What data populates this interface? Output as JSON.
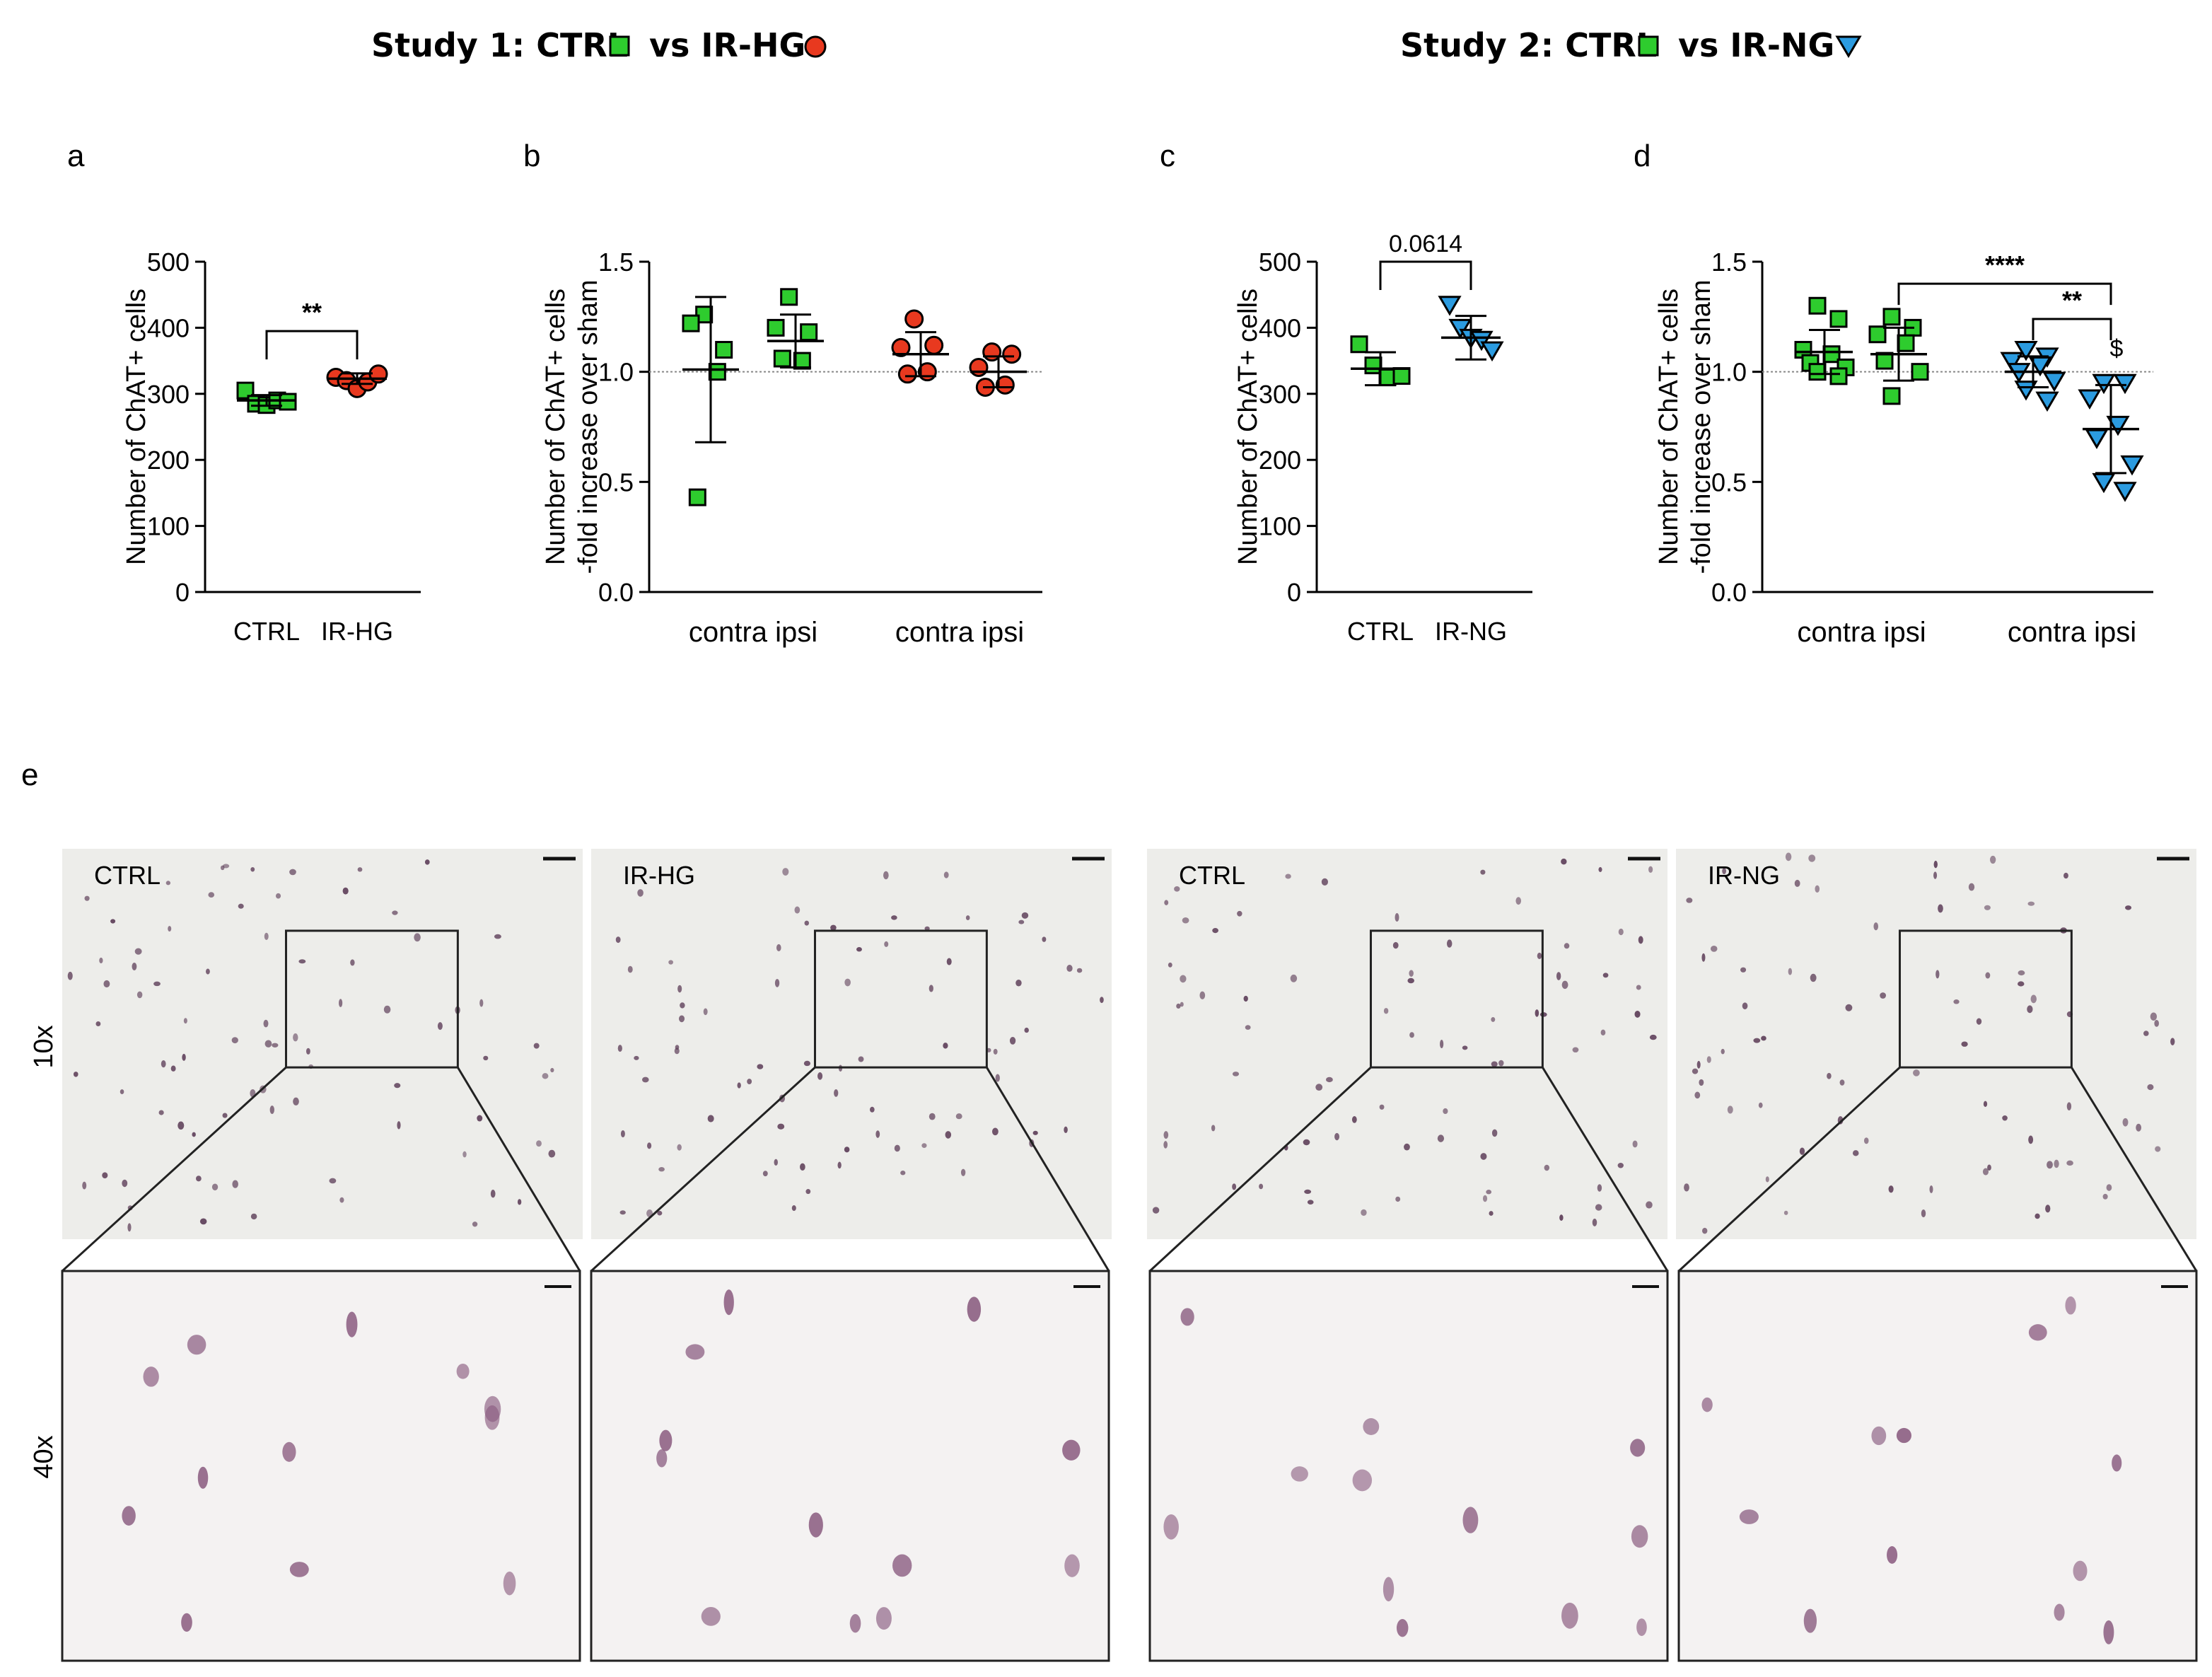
{
  "titles": {
    "study1": "Study 1: CTRL",
    "study1_vs": "vs IR-HG",
    "study2": "Study 2: CTRL",
    "study2_vs": "vs IR-NG"
  },
  "colors": {
    "ctrl": "#2ecc2e",
    "ir_hg": "#e8391f",
    "ir_ng": "#2b9be0",
    "tissue_bg": "#ededea",
    "tissue_bg_40x": "#f4f2f2",
    "cell": "#5a3a55",
    "cell_40x": "#8a5c80"
  },
  "chart_data": [
    {
      "panel": "a",
      "type": "scatter",
      "ylabel": "Number of ChAT+ cells",
      "ylim": [
        0,
        500
      ],
      "yticks": [
        "0",
        "100",
        "200",
        "300",
        "400",
        "500"
      ],
      "categories": [
        "CTRL",
        "IR-HG"
      ],
      "series": [
        {
          "marker": "square",
          "color": "ctrl",
          "values": [
            305,
            285,
            283,
            290,
            288
          ],
          "mean": 290,
          "sd": 8
        },
        {
          "marker": "circle",
          "color": "ir_hg",
          "values": [
            325,
            320,
            308,
            318,
            330
          ],
          "mean": 323,
          "sd": 8
        }
      ],
      "annotations": [
        {
          "text": "**",
          "from": 0,
          "to": 1,
          "y": 395
        }
      ]
    },
    {
      "panel": "b",
      "type": "scatter",
      "ylabel": [
        "Number of ChAT+ cells",
        "-fold increase over sham"
      ],
      "ylim": [
        0,
        1.5
      ],
      "yticks": [
        "0.0",
        "0.5",
        "1.0",
        "1.5"
      ],
      "reference_line": 1.0,
      "groups": [
        {
          "label": "contra ipsi",
          "members": [
            {
              "marker": "square",
              "color": "ctrl",
              "values": [
                1.26,
                1.1,
                1.22,
                1.0,
                0.43
              ],
              "mean": 1.01,
              "sd": 0.33
            },
            {
              "marker": "square",
              "color": "ctrl",
              "values": [
                1.34,
                1.18,
                1.2,
                1.05,
                1.06
              ],
              "mean": 1.14,
              "sd": 0.12
            }
          ]
        },
        {
          "label": "contra ipsi",
          "members": [
            {
              "marker": "circle",
              "color": "ir_hg",
              "values": [
                1.24,
                1.12,
                1.11,
                1.0,
                0.99
              ],
              "mean": 1.08,
              "sd": 0.1
            },
            {
              "marker": "circle",
              "color": "ir_hg",
              "values": [
                1.09,
                1.08,
                1.02,
                0.94,
                0.93
              ],
              "mean": 1.0,
              "sd": 0.07
            }
          ]
        }
      ]
    },
    {
      "panel": "c",
      "type": "scatter",
      "ylabel": "Number of ChAT+ cells",
      "ylim": [
        0,
        500
      ],
      "yticks": [
        "0",
        "100",
        "200",
        "300",
        "400",
        "500"
      ],
      "categories": [
        "CTRL",
        "IR-NG"
      ],
      "series": [
        {
          "marker": "square",
          "color": "ctrl",
          "values": [
            375,
            343,
            325,
            327
          ],
          "mean": 338,
          "sd": 25
        },
        {
          "marker": "triangle",
          "color": "ir_ng",
          "values": [
            435,
            400,
            385,
            382,
            366
          ],
          "mean": 385,
          "sd": 33
        }
      ],
      "annotations": [
        {
          "text": "0.0614",
          "from": 0,
          "to": 1,
          "y": 500
        }
      ]
    },
    {
      "panel": "d",
      "type": "scatter",
      "ylabel": [
        "Number of ChAT+ cells",
        "-fold increase over sham"
      ],
      "ylim": [
        0,
        1.5
      ],
      "yticks": [
        "0.0",
        "0.5",
        "1.0",
        "1.5"
      ],
      "reference_line": 1.0,
      "groups": [
        {
          "label": "contra ipsi",
          "members": [
            {
              "marker": "square",
              "color": "ctrl",
              "values": [
                1.3,
                1.24,
                1.1,
                1.08,
                1.04,
                1.02,
                1.0,
                0.98
              ],
              "mean": 1.09,
              "sd": 0.1
            },
            {
              "marker": "square",
              "color": "ctrl",
              "values": [
                1.25,
                1.2,
                1.17,
                1.13,
                1.05,
                1.0,
                0.89
              ],
              "mean": 1.08,
              "sd": 0.12
            }
          ]
        },
        {
          "label": "contra ipsi",
          "members": [
            {
              "marker": "triangle",
              "color": "ir_ng",
              "values": [
                1.1,
                1.07,
                1.05,
                1.03,
                1.0,
                0.96,
                0.92,
                0.87
              ],
              "mean": 1.0,
              "sd": 0.07
            },
            {
              "marker": "triangle",
              "color": "ir_ng",
              "values": [
                0.95,
                0.95,
                0.88,
                0.76,
                0.7,
                0.58,
                0.5,
                0.46
              ],
              "mean": 0.74,
              "sd": 0.2
            }
          ]
        }
      ],
      "annotations": [
        {
          "text": "****",
          "from": [
            0,
            1
          ],
          "to": [
            1,
            1
          ],
          "y": 1.4
        },
        {
          "text": "**",
          "from": [
            1,
            0
          ],
          "to": [
            1,
            1
          ],
          "y": 1.24
        },
        {
          "text": "$",
          "at": [
            1,
            1
          ],
          "y": 1.07
        }
      ]
    }
  ],
  "panels": {
    "a": "a",
    "b": "b",
    "c": "c",
    "d": "d",
    "e": "e"
  },
  "images": {
    "mag_10x": "10x",
    "mag_40x": "40x",
    "labels": [
      "CTRL",
      "IR-HG",
      "CTRL",
      "IR-NG"
    ]
  }
}
